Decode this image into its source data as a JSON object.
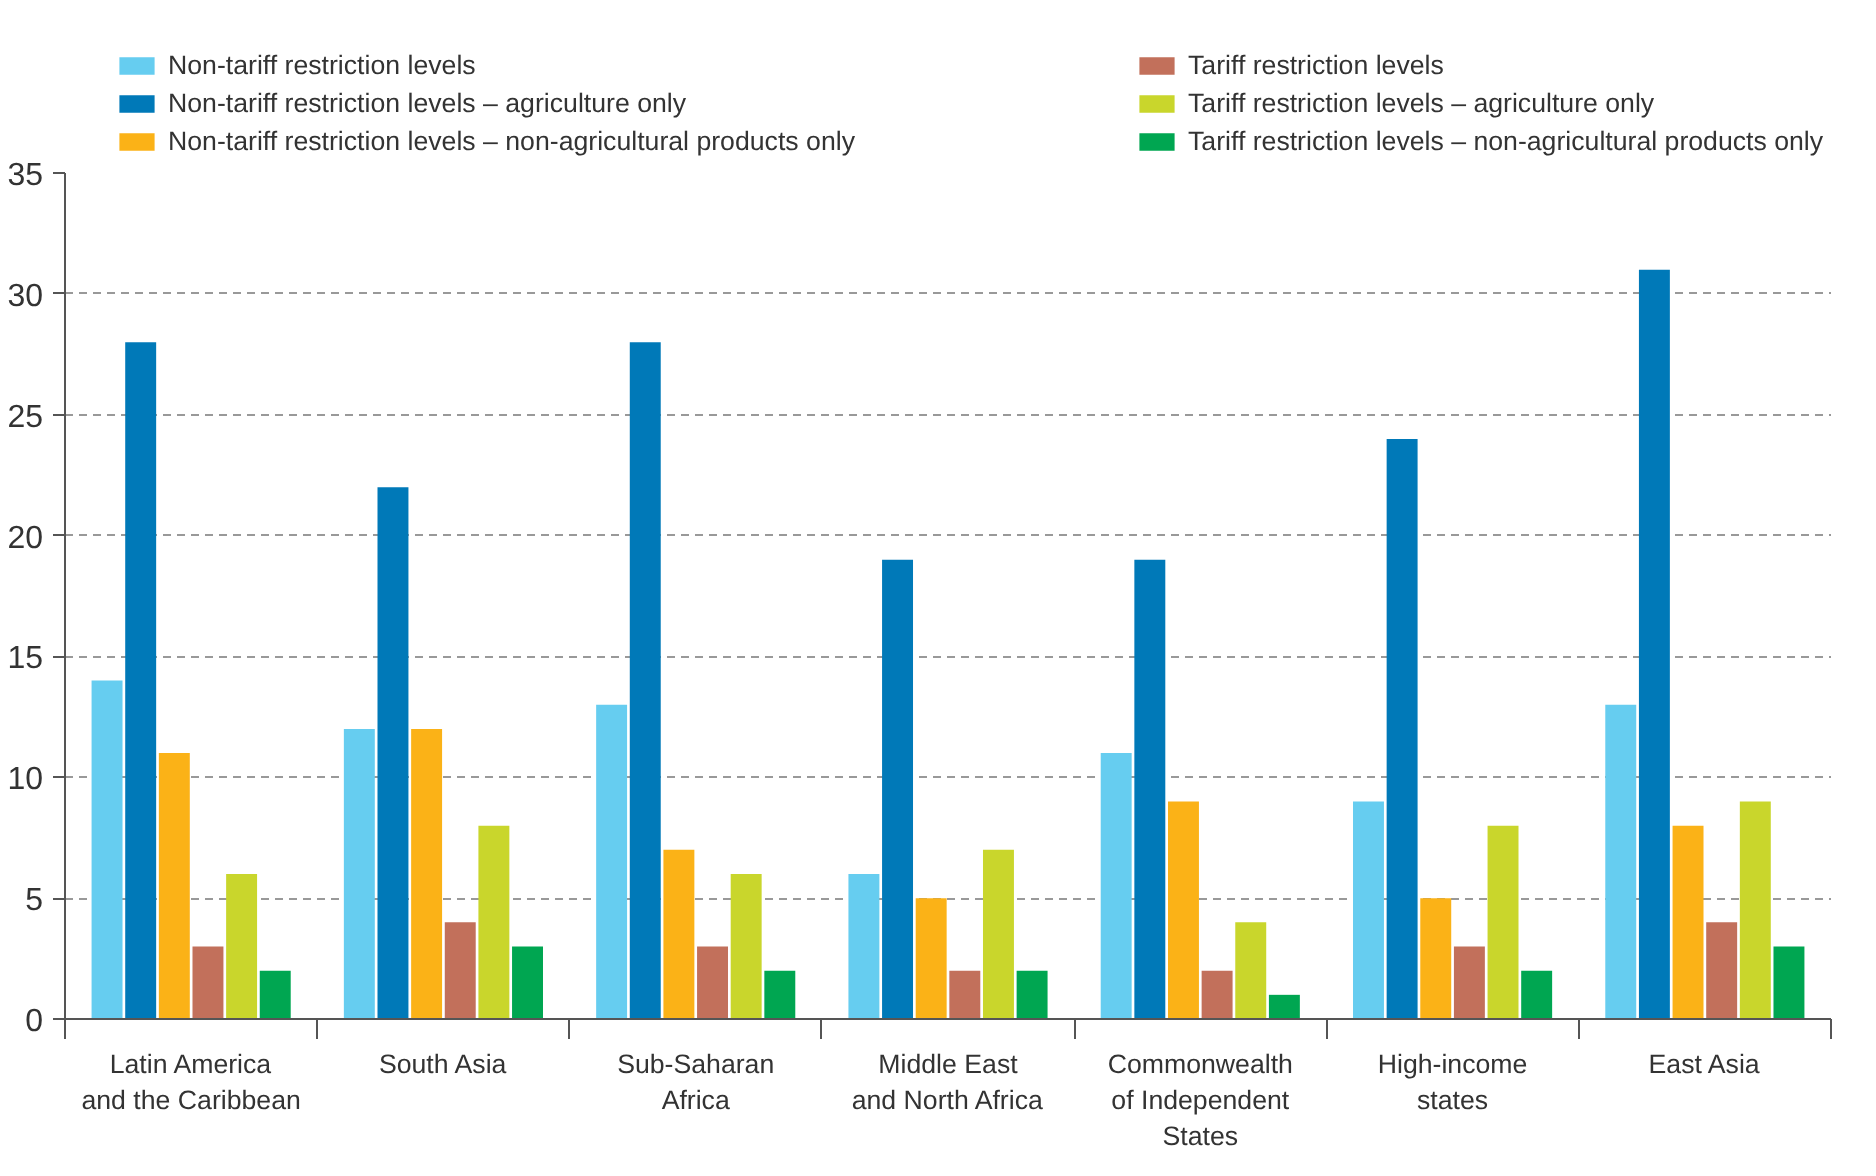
{
  "chart_data": {
    "type": "bar",
    "categories": [
      "Latin America\nand the Caribbean",
      "South Asia",
      "Sub-Saharan\nAfrica",
      "Middle East\nand North Africa",
      "Commonwealth\nof Independent\nStates",
      "High-income\nstates",
      "East Asia"
    ],
    "series": [
      {
        "name": "Non-tariff restriction levels",
        "color": "#66cdf0",
        "values": [
          14,
          12,
          13,
          6,
          11,
          9,
          13
        ]
      },
      {
        "name": "Non-tariff restriction levels – agriculture only",
        "color": "#0079b8",
        "values": [
          28,
          22,
          28,
          19,
          19,
          24,
          31
        ]
      },
      {
        "name": "Non-tariff restriction levels – non-agricultural products only",
        "color": "#fbb217",
        "values": [
          11,
          12,
          7,
          5,
          9,
          5,
          8
        ]
      },
      {
        "name": "Tariff restriction levels",
        "color": "#c2705b",
        "values": [
          3,
          4,
          3,
          2,
          2,
          3,
          4
        ]
      },
      {
        "name": "Tariff restriction levels – agriculture only",
        "color": "#c9d62c",
        "values": [
          6,
          8,
          6,
          7,
          4,
          8,
          9
        ]
      },
      {
        "name": "Tariff restriction levels – non-agricultural products only",
        "color": "#00a651",
        "values": [
          2,
          3,
          2,
          2,
          1,
          2,
          3
        ]
      }
    ],
    "ylim": [
      0,
      35
    ],
    "yticks": [
      0,
      5,
      10,
      15,
      20,
      25,
      30,
      35
    ],
    "grid": "y",
    "legend": "top"
  }
}
